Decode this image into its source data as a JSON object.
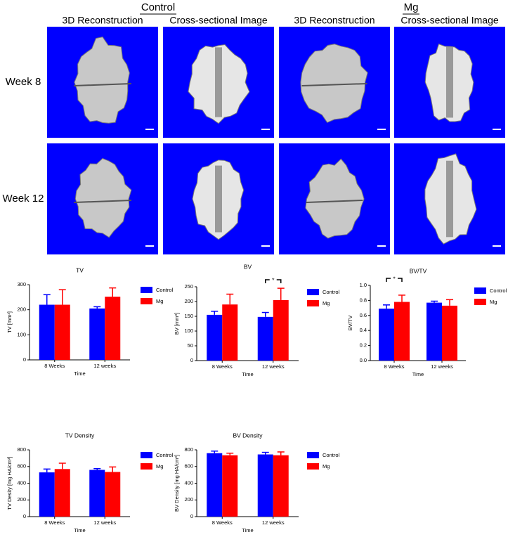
{
  "figure": {
    "groups": [
      "Control",
      "Mg"
    ],
    "views": [
      "3D Reconstruction",
      "Cross-sectional Image",
      "3D Reconstruction",
      "Cross-sectional Image"
    ],
    "rows": [
      "Week 8",
      "Week 12"
    ]
  },
  "chart_data": [
    {
      "type": "bar",
      "title": "TV",
      "ylabel": "TV [mm³]",
      "xlabel": "Time",
      "categories": [
        "8 Weeks",
        "12 weeks"
      ],
      "series": [
        {
          "name": "Control",
          "color": "#0000ff",
          "values": [
            220,
            205
          ],
          "errors": [
            40,
            7
          ]
        },
        {
          "name": "Mg",
          "color": "#ff0000",
          "values": [
            220,
            252
          ],
          "errors": [
            60,
            35
          ]
        }
      ],
      "ylim": [
        0,
        300
      ],
      "yticks": [
        0,
        100,
        200,
        300
      ],
      "annotations": []
    },
    {
      "type": "bar",
      "title": "BV",
      "ylabel": "BV [mm³]",
      "xlabel": "Time",
      "categories": [
        "8 Weeks",
        "12 weeks"
      ],
      "series": [
        {
          "name": "Control",
          "color": "#0000ff",
          "values": [
            155,
            148
          ],
          "errors": [
            12,
            15
          ]
        },
        {
          "name": "Mg",
          "color": "#ff0000",
          "values": [
            190,
            205
          ],
          "errors": [
            35,
            40
          ]
        }
      ],
      "ylim": [
        0,
        250
      ],
      "yticks": [
        0,
        50,
        100,
        150,
        200,
        250
      ],
      "annotations": [
        {
          "text": "*",
          "category": "12 weeks"
        }
      ]
    },
    {
      "type": "bar",
      "title": "BV/TV",
      "ylabel": "BV/TV",
      "xlabel": "Time",
      "categories": [
        "8 Weeks",
        "12 weeks"
      ],
      "series": [
        {
          "name": "Control",
          "color": "#0000ff",
          "values": [
            0.69,
            0.77
          ],
          "errors": [
            0.05,
            0.02
          ]
        },
        {
          "name": "Mg",
          "color": "#ff0000",
          "values": [
            0.78,
            0.73
          ],
          "errors": [
            0.09,
            0.08
          ]
        }
      ],
      "ylim": [
        0,
        1
      ],
      "yticks": [
        {
          "value": 0,
          "label": "0.0"
        },
        0.2,
        0.4,
        0.6,
        0.8,
        {
          "value": 1,
          "label": "1.0"
        }
      ],
      "annotations": [
        {
          "text": "*",
          "category": "8 Weeks"
        }
      ]
    },
    {
      "type": "bar",
      "title": "TV Density",
      "ylabel": "TV Desity [mg HA/cm³]",
      "xlabel": "Time",
      "categories": [
        "8 Weeks",
        "12 weeks"
      ],
      "series": [
        {
          "name": "Control",
          "color": "#0000ff",
          "values": [
            530,
            560
          ],
          "errors": [
            40,
            15
          ]
        },
        {
          "name": "Mg",
          "color": "#ff0000",
          "values": [
            570,
            535
          ],
          "errors": [
            70,
            60
          ]
        }
      ],
      "ylim": [
        0,
        800
      ],
      "yticks": [
        0,
        200,
        400,
        600,
        800
      ],
      "annotations": []
    },
    {
      "type": "bar",
      "title": "BV Density",
      "ylabel": "BV Density [mg HA/cm³]",
      "xlabel": "Time",
      "categories": [
        "8 Weeks",
        "12 weeks"
      ],
      "series": [
        {
          "name": "Control",
          "color": "#0000ff",
          "values": [
            760,
            745
          ],
          "errors": [
            25,
            25
          ]
        },
        {
          "name": "Mg",
          "color": "#ff0000",
          "values": [
            735,
            735
          ],
          "errors": [
            25,
            40
          ]
        }
      ],
      "ylim": [
        0,
        800
      ],
      "yticks": [
        0,
        200,
        400,
        600,
        800
      ],
      "annotations": []
    }
  ]
}
